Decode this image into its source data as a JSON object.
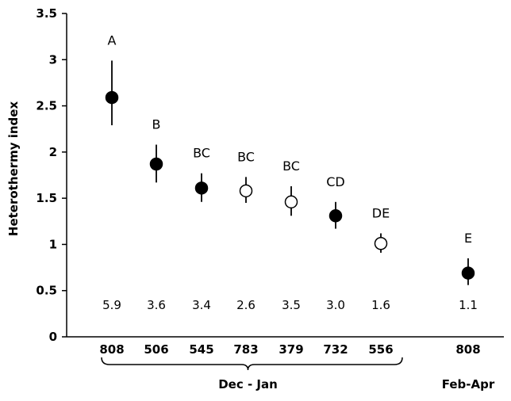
{
  "chart_data": {
    "type": "scatter",
    "ylabel": "Heterothermy index",
    "xlabel": "",
    "ylim": [
      0,
      3.5
    ],
    "yticks": [
      0,
      0.5,
      1,
      1.5,
      2,
      2.5,
      3,
      3.5
    ],
    "ytick_labels": [
      "0",
      "0.5",
      "1",
      "1.5",
      "2",
      "2.5",
      "3",
      "3.5"
    ],
    "grid": false,
    "points": [
      {
        "category": "808",
        "period": "Dec - Jan",
        "y": 2.59,
        "err_low": 2.29,
        "err_high": 2.99,
        "filled": true,
        "sig": "A",
        "n": "5.9"
      },
      {
        "category": "506",
        "period": "Dec - Jan",
        "y": 1.87,
        "err_low": 1.67,
        "err_high": 2.08,
        "filled": true,
        "sig": "B",
        "n": "3.6"
      },
      {
        "category": "545",
        "period": "Dec - Jan",
        "y": 1.61,
        "err_low": 1.46,
        "err_high": 1.77,
        "filled": true,
        "sig": "BC",
        "n": "3.4"
      },
      {
        "category": "783",
        "period": "Dec - Jan",
        "y": 1.58,
        "err_low": 1.45,
        "err_high": 1.73,
        "filled": false,
        "sig": "BC",
        "n": "2.6"
      },
      {
        "category": "379",
        "period": "Dec - Jan",
        "y": 1.46,
        "err_low": 1.31,
        "err_high": 1.63,
        "filled": false,
        "sig": "BC",
        "n": "3.5"
      },
      {
        "category": "732",
        "period": "Dec - Jan",
        "y": 1.31,
        "err_low": 1.17,
        "err_high": 1.46,
        "filled": true,
        "sig": "CD",
        "n": "3.0"
      },
      {
        "category": "556",
        "period": "Dec - Jan",
        "y": 1.01,
        "err_low": 0.91,
        "err_high": 1.12,
        "filled": false,
        "sig": "DE",
        "n": "1.6"
      },
      {
        "category": "808",
        "period": "Feb-Apr",
        "y": 0.69,
        "err_low": 0.56,
        "err_high": 0.85,
        "filled": true,
        "sig": "E",
        "n": "1.1"
      }
    ],
    "periods": [
      {
        "label": "Dec - Jan",
        "from": 0,
        "to": 6
      },
      {
        "label": "Feb-Apr",
        "from": 7,
        "to": 7
      }
    ]
  }
}
